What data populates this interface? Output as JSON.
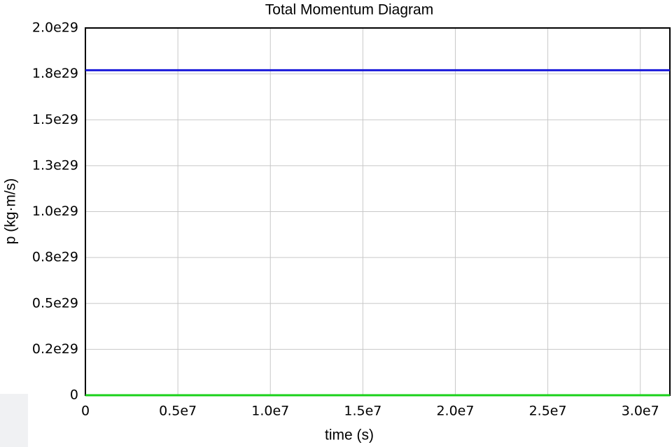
{
  "chart_data": {
    "type": "line",
    "title": "Total Momentum Diagram",
    "x_label": "time (s)",
    "y_label": "p (kg·m/s)",
    "series": [
      {
        "color": "#1a1adb",
        "x": [
          0,
          31600000
        ],
        "values": [
          1.77e+29,
          1.77e+29
        ]
      },
      {
        "color": "#1ad11a",
        "x": [
          0,
          31600000
        ],
        "values": [
          0,
          0
        ]
      }
    ],
    "xlim": [
      0,
      31600000
    ],
    "ylim": [
      0,
      2e+29
    ],
    "xticks": [
      0,
      {
        "value": 5000000,
        "label": "0.5e7"
      },
      {
        "value": 10000000,
        "label": "1.0e7"
      },
      {
        "value": 15000000,
        "label": "1.5e7"
      },
      {
        "value": 20000000,
        "label": "2.0e7"
      },
      {
        "value": 25000000,
        "label": "2.5e7"
      },
      {
        "value": 30000000,
        "label": "3.0e7"
      }
    ],
    "yticks": [
      0,
      {
        "value": 2.5e+28,
        "label": "0.2e29"
      },
      {
        "value": 5e+28,
        "label": "0.5e29"
      },
      {
        "value": 7.5e+28,
        "label": "0.8e29"
      },
      {
        "value": 1e+29,
        "label": "1.0e29"
      },
      {
        "value": 1.25e+29,
        "label": "1.3e29"
      },
      {
        "value": 1.5e+29,
        "label": "1.5e29"
      },
      {
        "value": 1.75e+29,
        "label": "1.8e29"
      },
      {
        "value": 2e+29,
        "label": "2.0e29"
      }
    ],
    "grid": true
  }
}
